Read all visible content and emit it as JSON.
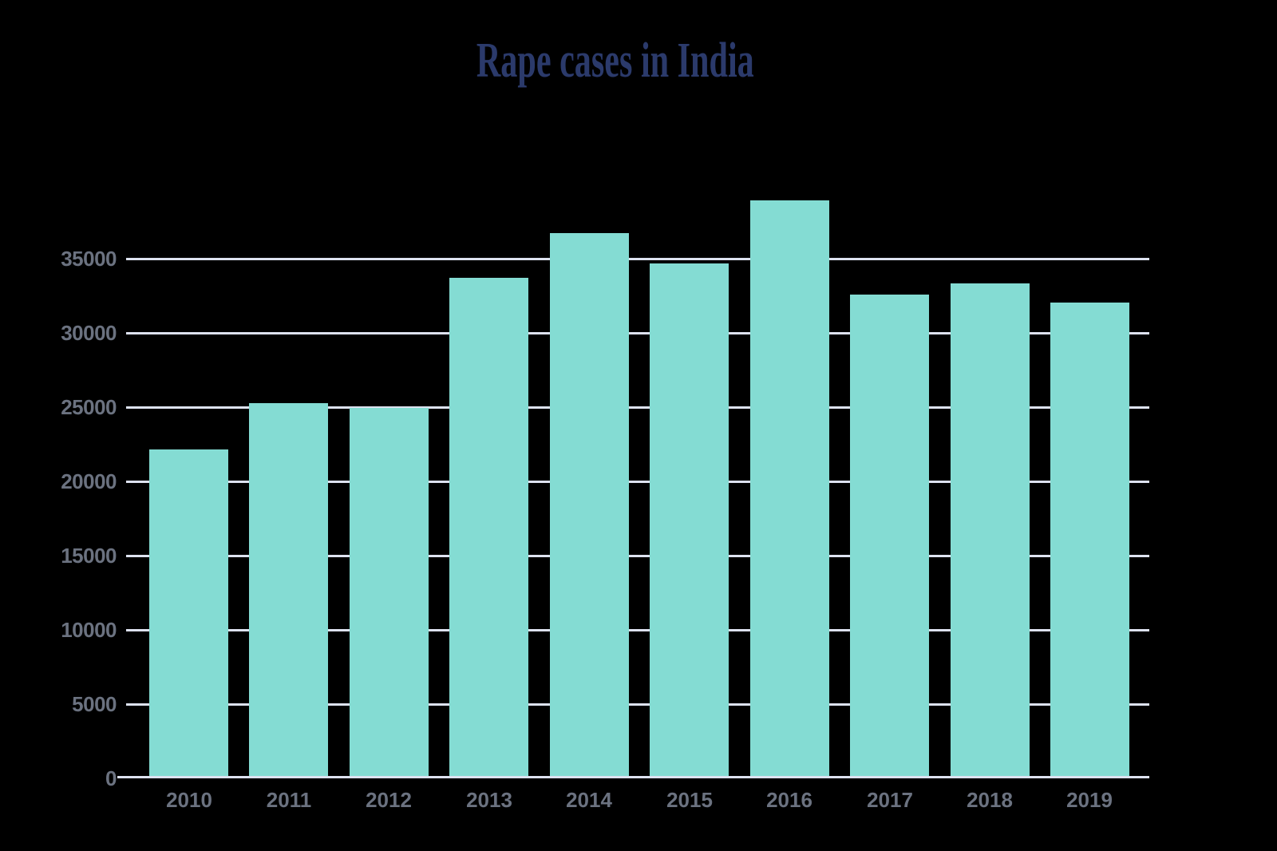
{
  "page": {
    "background_color": "#000000"
  },
  "chart_data": {
    "type": "bar",
    "title": "Rape cases in India",
    "categories": [
      "2010",
      "2011",
      "2012",
      "2013",
      "2014",
      "2015",
      "2016",
      "2017",
      "2018",
      "2019"
    ],
    "values": [
      22172,
      25270,
      24923,
      33707,
      36735,
      34651,
      38947,
      32559,
      33356,
      32033
    ],
    "xlabel": "",
    "ylabel": "",
    "ylim": [
      0,
      40000
    ],
    "yticks": [
      0,
      5000,
      10000,
      15000,
      20000,
      25000,
      30000,
      35000
    ],
    "grid": "horizontal-only",
    "legend": "none",
    "colors": {
      "bar_fill": "#84dcd3",
      "gridline": "#dde2f0",
      "axis_line": "#dde2f0",
      "tick_label": "#6b7280",
      "title": "#2b3a6b"
    }
  }
}
